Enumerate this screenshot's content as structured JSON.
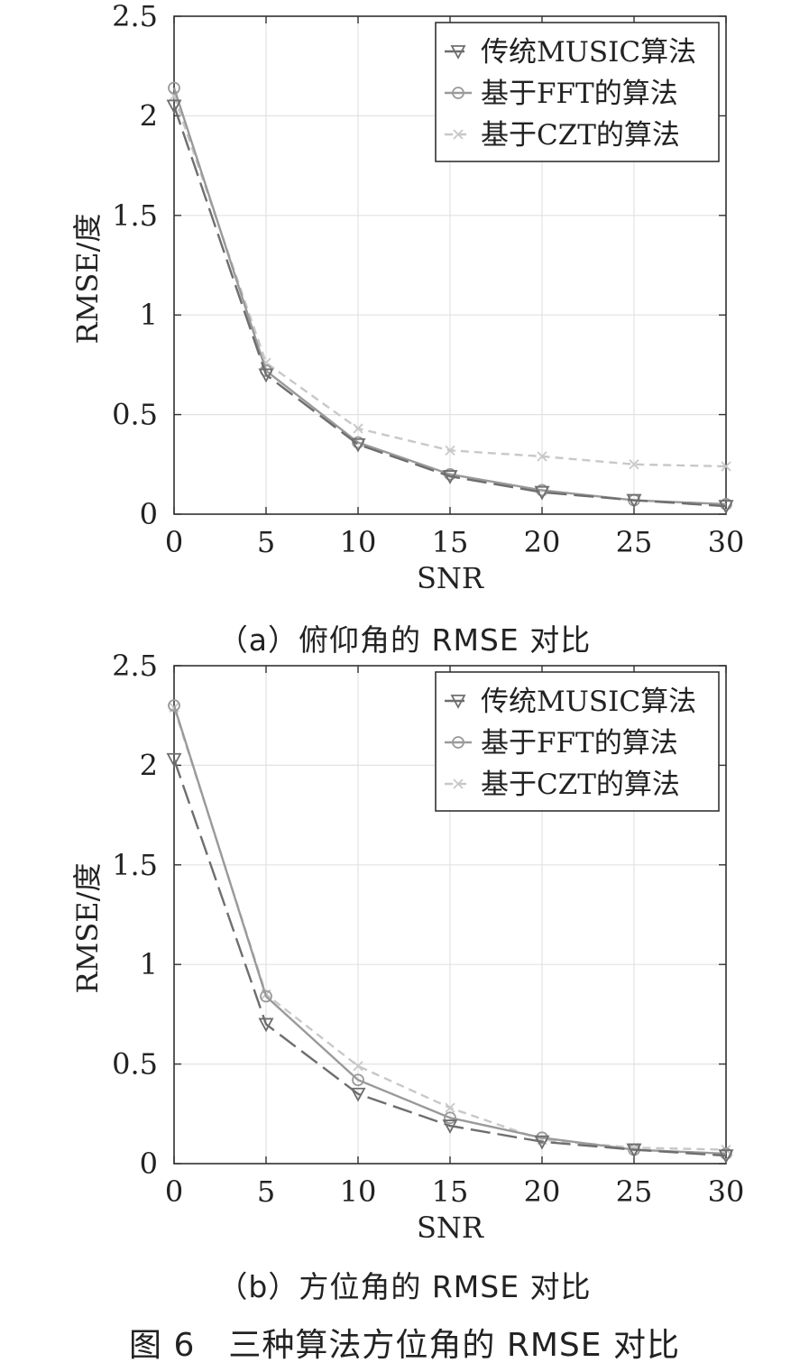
{
  "chart_data": [
    {
      "type": "line",
      "caption": "（a）俯仰角的 RMSE 对比",
      "xlabel": "SNR",
      "ylabel": "RMSE/度",
      "x": [
        0,
        5,
        10,
        15,
        20,
        25,
        30
      ],
      "xlim": [
        0,
        30
      ],
      "ylim": [
        0,
        2.5
      ],
      "xticks": [
        "0",
        "5",
        "10",
        "15",
        "20",
        "25",
        "30"
      ],
      "yticks": [
        "0",
        "0.5",
        "1",
        "1.5",
        "2",
        "2.5"
      ],
      "grid": true,
      "legend_position": "top-right",
      "series": [
        {
          "name": "传统MUSIC算法",
          "values": [
            2.05,
            0.7,
            0.35,
            0.19,
            0.11,
            0.07,
            0.04
          ],
          "color": "#6e6e6e",
          "marker": "triangle-down",
          "dash": "long-dash"
        },
        {
          "name": "基于FFT的算法",
          "values": [
            2.14,
            0.72,
            0.36,
            0.2,
            0.12,
            0.07,
            0.05
          ],
          "color": "#9a9a9a",
          "marker": "circle",
          "dash": "solid"
        },
        {
          "name": "基于CZT的算法",
          "values": [
            2.1,
            0.76,
            0.43,
            0.32,
            0.29,
            0.25,
            0.24
          ],
          "color": "#c8c8c8",
          "marker": "x",
          "dash": "short-dash"
        }
      ]
    },
    {
      "type": "line",
      "caption": "（b）方位角的 RMSE 对比",
      "xlabel": "SNR",
      "ylabel": "RMSE/度",
      "x": [
        0,
        5,
        10,
        15,
        20,
        25,
        30
      ],
      "xlim": [
        0,
        30
      ],
      "ylim": [
        0,
        2.5
      ],
      "xticks": [
        "0",
        "5",
        "10",
        "15",
        "20",
        "25",
        "30"
      ],
      "yticks": [
        "0",
        "0.5",
        "1",
        "1.5",
        "2",
        "2.5"
      ],
      "grid": true,
      "legend_position": "top-right",
      "series": [
        {
          "name": "传统MUSIC算法",
          "values": [
            2.03,
            0.7,
            0.35,
            0.19,
            0.11,
            0.07,
            0.04
          ],
          "color": "#6e6e6e",
          "marker": "triangle-down",
          "dash": "long-dash"
        },
        {
          "name": "基于FFT的算法",
          "values": [
            2.3,
            0.84,
            0.42,
            0.23,
            0.13,
            0.07,
            0.05
          ],
          "color": "#9a9a9a",
          "marker": "circle",
          "dash": "solid"
        },
        {
          "name": "基于CZT的算法",
          "values": [
            2.29,
            0.85,
            0.49,
            0.28,
            0.12,
            0.08,
            0.07
          ],
          "color": "#c8c8c8",
          "marker": "x",
          "dash": "short-dash"
        }
      ]
    }
  ],
  "figure_caption": "图 6　三种算法方位角的 RMSE 对比"
}
